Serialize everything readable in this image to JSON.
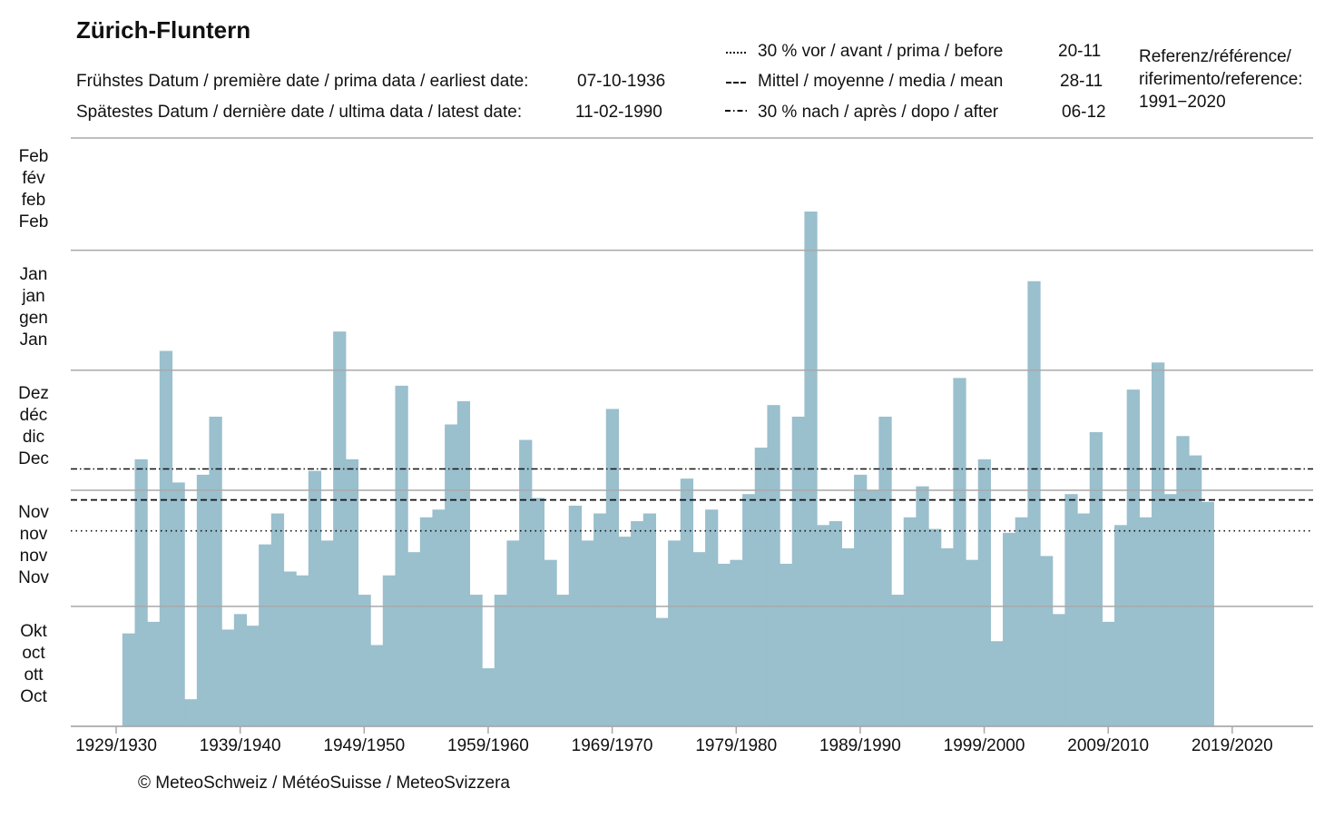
{
  "chart_data": {
    "type": "bar",
    "title": "Zürich-Fluntern",
    "stats": {
      "earliest_label": "Frühstes Datum / première date / prima data / earliest date:",
      "earliest_value": "07-10-1936",
      "latest_label": "Spätestes Datum / dernière date /  ultima data / latest date:",
      "latest_value": "11-02-1990"
    },
    "legend": [
      {
        "label": "30  %  vor  /  avant  /  prima  /  before",
        "value": "20-11",
        "style": "dotted"
      },
      {
        "label": "Mittel  /  moyenne  /  media  /  mean",
        "value": "28-11",
        "style": "dashed"
      },
      {
        "label": "30 % nach / après / dopo / after",
        "value": "06-12",
        "style": "dashdot"
      }
    ],
    "reference": [
      "Referenz/référence/",
      "riferimento/reference:",
      "1991−2020"
    ],
    "month_labels": [
      {
        "lines": [
          "Feb",
          "fév",
          "feb",
          "Feb"
        ]
      },
      {
        "lines": [
          "Jan",
          "jan",
          "gen",
          "Jan"
        ]
      },
      {
        "lines": [
          "Dez",
          "déc",
          "dic",
          "Dec"
        ]
      },
      {
        "lines": [
          "Nov",
          "nov",
          "nov",
          "Nov"
        ]
      },
      {
        "lines": [
          "Okt",
          "oct",
          "ott",
          "Oct"
        ]
      }
    ],
    "y_axis_unit": "days after 1 October",
    "ylim": [
      0,
      152
    ],
    "month_boundaries": [
      31,
      61,
      92,
      123
    ],
    "reference_lines": {
      "before": 50.5,
      "mean": 58.5,
      "after": 66.5
    },
    "x_tick_labels": [
      "1929/1930",
      "1939/1940",
      "1949/1950",
      "1959/1960",
      "1969/1970",
      "1979/1980",
      "1989/1990",
      "1999/2000",
      "2009/2010",
      "2019/2020"
    ],
    "x_start_winter": 1929,
    "x_end_winter": 2021,
    "first_bar_winter": 1930,
    "values": [
      24,
      69,
      27,
      97,
      63,
      7,
      65,
      80,
      25,
      29,
      26,
      47,
      55,
      40,
      39,
      66,
      48,
      102,
      69,
      34,
      21,
      39,
      88,
      45,
      54,
      56,
      78,
      84,
      34,
      15,
      34,
      48,
      74,
      59,
      43,
      34,
      57,
      48,
      55,
      82,
      49,
      53,
      55,
      28,
      48,
      64,
      45,
      56,
      42,
      43,
      60,
      72,
      83,
      42,
      80,
      133,
      52,
      53,
      46,
      65,
      61,
      80,
      34,
      54,
      62,
      51,
      46,
      90,
      43,
      69,
      22,
      50,
      54,
      115,
      44,
      29,
      60,
      55,
      76,
      27,
      52,
      87,
      54,
      94,
      60,
      75,
      70,
      58
    ]
  },
  "copyright": "© MeteoSchweiz / MétéoSuisse / MeteoSvizzera",
  "colors": {
    "bar": "#9ABFCD",
    "grid": "#A9A9A9",
    "text": "#111111",
    "reference_line": "#111111"
  }
}
